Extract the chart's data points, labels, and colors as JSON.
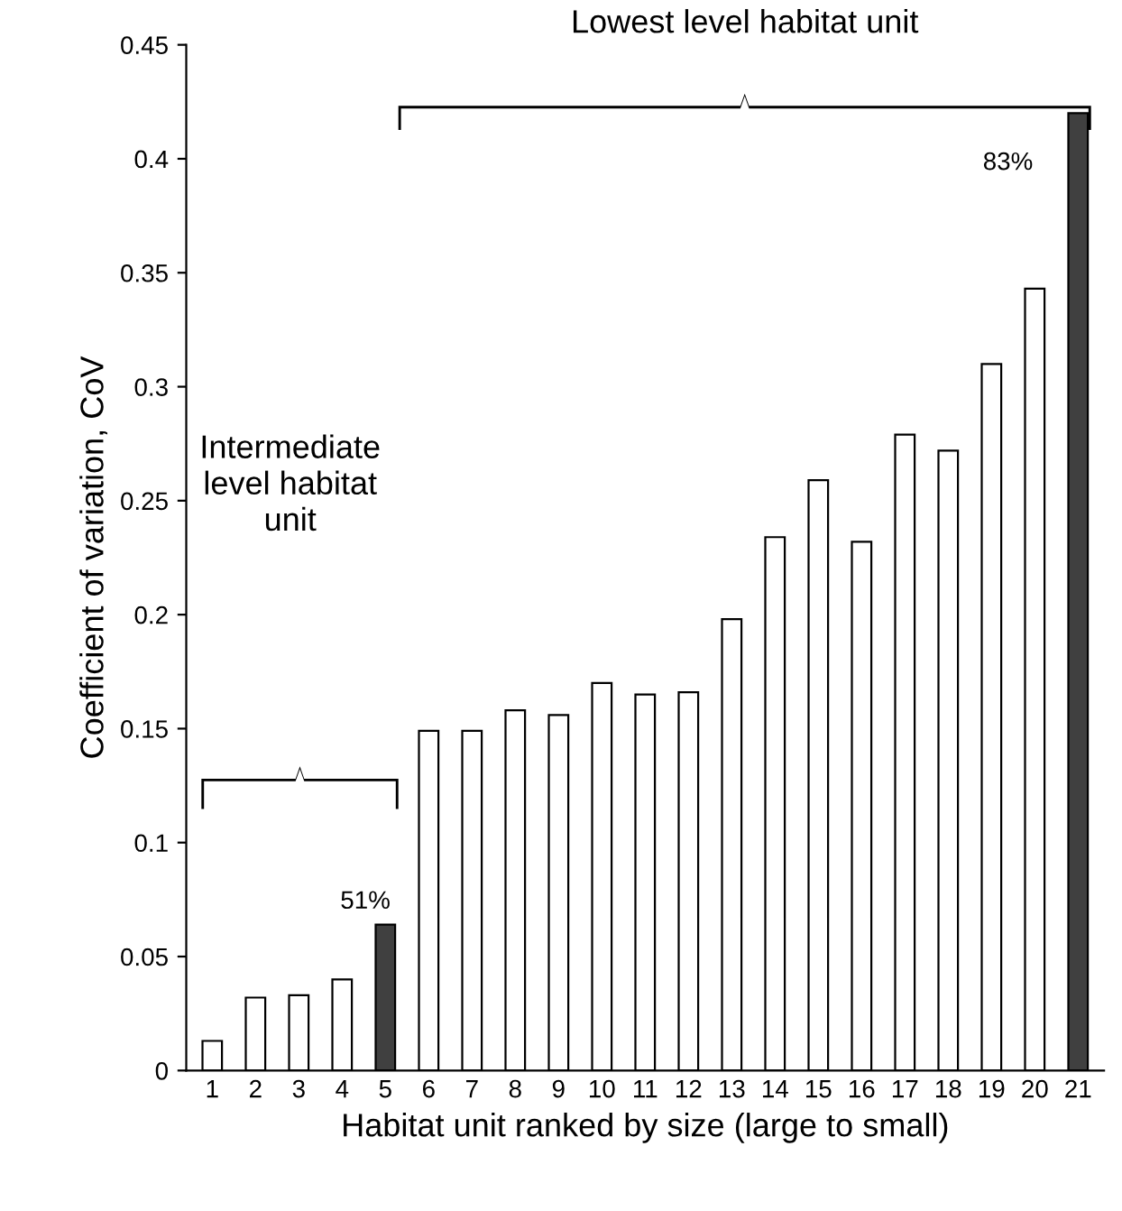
{
  "chart_data": {
    "type": "bar",
    "xlabel": "Habitat unit ranked by size (large to small)",
    "ylabel": "Coefficient of variation, CoV",
    "categories": [
      "1",
      "2",
      "3",
      "4",
      "5",
      "6",
      "7",
      "8",
      "9",
      "10",
      "11",
      "12",
      "13",
      "14",
      "15",
      "16",
      "17",
      "18",
      "19",
      "20",
      "21"
    ],
    "values": [
      0.013,
      0.032,
      0.033,
      0.04,
      0.064,
      0.149,
      0.149,
      0.158,
      0.156,
      0.17,
      0.165,
      0.166,
      0.198,
      0.234,
      0.259,
      0.232,
      0.279,
      0.272,
      0.31,
      0.343,
      0.42
    ],
    "colors": [
      "#ffffff",
      "#ffffff",
      "#ffffff",
      "#ffffff",
      "#404040",
      "#ffffff",
      "#ffffff",
      "#ffffff",
      "#ffffff",
      "#ffffff",
      "#ffffff",
      "#ffffff",
      "#ffffff",
      "#ffffff",
      "#ffffff",
      "#ffffff",
      "#ffffff",
      "#ffffff",
      "#ffffff",
      "#ffffff",
      "#404040"
    ],
    "ylim": [
      0,
      0.45
    ],
    "yticks": [
      {
        "value": 0,
        "label": "0"
      },
      0.05,
      {
        "value": 0.1,
        "label": "0.1"
      },
      0.15,
      {
        "value": 0.2,
        "label": "0.2"
      },
      0.25,
      {
        "value": 0.3,
        "label": "0.3"
      },
      0.35,
      {
        "value": 0.4,
        "label": "0.4"
      },
      0.45
    ],
    "grid": false,
    "annotations": [
      {
        "text": "51%",
        "x": "5",
        "y": 0.064
      },
      {
        "text": "83%",
        "x": "21",
        "y": 0.42
      },
      "Intermediate\nlevel habitat\nunit",
      "Lowest level habitat unit"
    ]
  }
}
